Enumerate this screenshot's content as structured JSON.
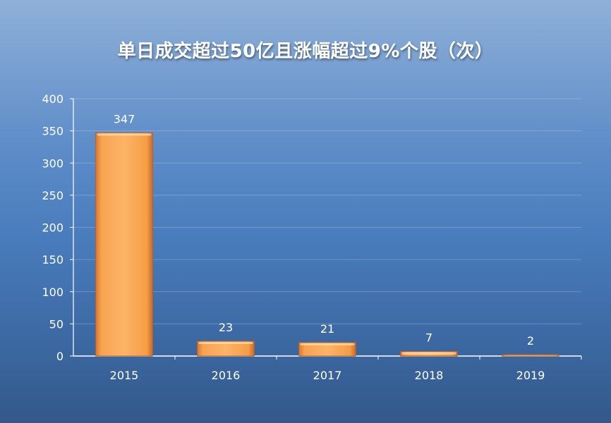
{
  "chart_data": {
    "type": "bar",
    "title": "单日成交超过50亿且涨幅超过9%个股（次）",
    "categories": [
      "2015",
      "2016",
      "2017",
      "2018",
      "2019"
    ],
    "values": [
      347,
      23,
      21,
      7,
      2
    ],
    "data_labels": [
      "347",
      "23",
      "21",
      "7",
      "2"
    ],
    "ylim": [
      0,
      400
    ],
    "yticks": [
      "0",
      "50",
      "100",
      "150",
      "200",
      "250",
      "300",
      "350",
      "400"
    ],
    "xlabel": "",
    "ylabel": "",
    "grid": true,
    "legend": "none",
    "bar_color": "#f5a04a"
  }
}
